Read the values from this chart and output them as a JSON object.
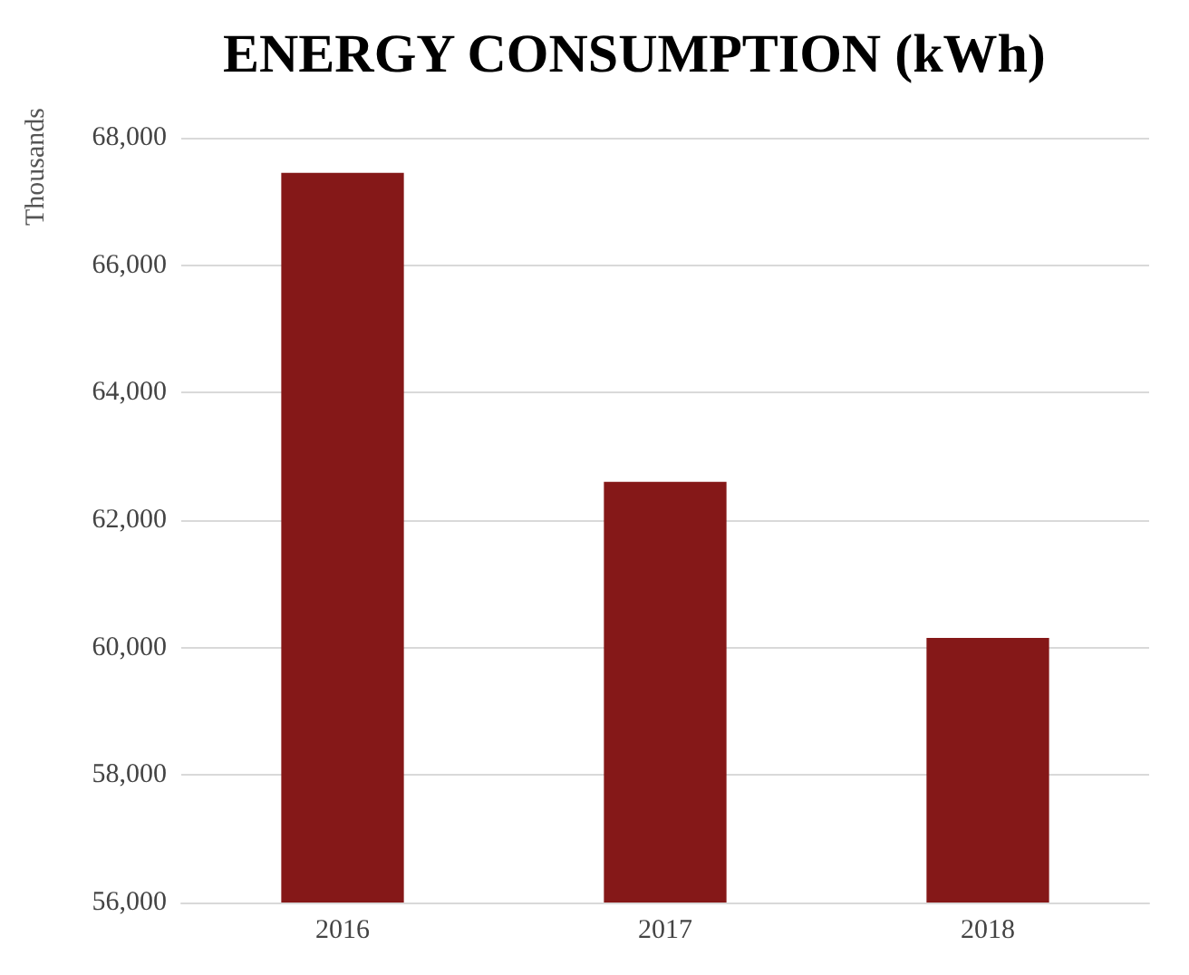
{
  "chart_data": {
    "type": "bar",
    "title": "ENERGY CONSUMPTION (kWh)",
    "ylabel": "Thousands",
    "categories": [
      "2016",
      "2017",
      "2018"
    ],
    "values": [
      67450,
      62600,
      60150
    ],
    "color": "#851818",
    "ylim": [
      56000,
      68000
    ],
    "yticks": [
      {
        "value": 56000,
        "label": "56,000"
      },
      {
        "value": 58000,
        "label": "58,000"
      },
      {
        "value": 60000,
        "label": "60,000"
      },
      {
        "value": 62000,
        "label": "62,000"
      },
      {
        "value": 64000,
        "label": "64,000"
      },
      {
        "value": 66000,
        "label": "66,000"
      },
      {
        "value": 68000,
        "label": "68,000"
      }
    ],
    "grid": "y"
  }
}
